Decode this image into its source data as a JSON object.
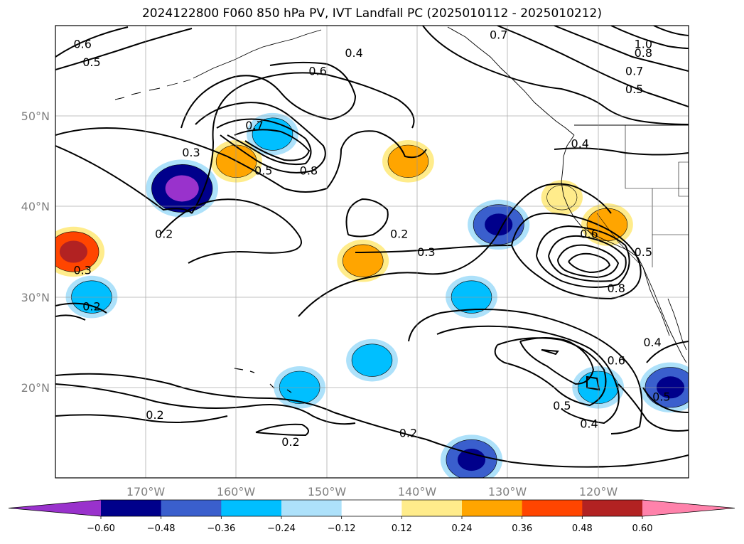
{
  "title": "2024122800 F060 850 hPa PV, IVT Landfall PC (2025010112 - 2025010212)",
  "chart_data": {
    "type": "map-contour",
    "projection": "PlateCarree",
    "lon_range": [
      -180,
      -110
    ],
    "lat_range": [
      10,
      60
    ],
    "lon_ticks": [
      {
        "value": -170,
        "label": "170°W"
      },
      {
        "value": -160,
        "label": "160°W"
      },
      {
        "value": -150,
        "label": "150°W"
      },
      {
        "value": -140,
        "label": "140°W"
      },
      {
        "value": -130,
        "label": "130°W"
      },
      {
        "value": -120,
        "label": "120°W"
      }
    ],
    "lat_ticks": [
      {
        "value": 50,
        "label": "50°N"
      },
      {
        "value": 40,
        "label": "40°N"
      },
      {
        "value": 30,
        "label": "30°N"
      },
      {
        "value": 20,
        "label": "20°N"
      }
    ],
    "grid": true,
    "colorbar": {
      "orientation": "horizontal",
      "extend": "both",
      "levels": [
        -0.6,
        -0.48,
        -0.36,
        -0.24,
        -0.12,
        0.12,
        0.24,
        0.36,
        0.48,
        0.6
      ],
      "tick_labels": [
        "−0.60",
        "−0.48",
        "−0.36",
        "−0.24",
        "−0.12",
        "0.12",
        "0.24",
        "0.36",
        "0.48",
        "0.60"
      ],
      "colors": [
        "#9932CC",
        "#00008B",
        "#3A5FCD",
        "#00BFFF",
        "#ADE1FA",
        "#FFFFFF",
        "#FFEC8B",
        "#FFA500",
        "#FF4500",
        "#B22222",
        "#FF82AB"
      ]
    },
    "shaded_regions": [
      {
        "lon": -166,
        "lat": 42,
        "level": -0.48
      },
      {
        "lon": -178,
        "lat": 35,
        "level": 0.36
      },
      {
        "lon": -160,
        "lat": 45,
        "level": 0.24
      },
      {
        "lon": -156,
        "lat": 48,
        "level": -0.24
      },
      {
        "lon": -141,
        "lat": 45,
        "level": 0.24
      },
      {
        "lon": -146,
        "lat": 34,
        "level": 0.24
      },
      {
        "lon": -131,
        "lat": 38,
        "level": -0.36
      },
      {
        "lon": -124,
        "lat": 41,
        "level": 0.12
      },
      {
        "lon": -119,
        "lat": 38,
        "level": 0.24
      },
      {
        "lon": -134,
        "lat": 30,
        "level": -0.24
      },
      {
        "lon": -145,
        "lat": 23,
        "level": -0.24
      },
      {
        "lon": -153,
        "lat": 20,
        "level": -0.24
      },
      {
        "lon": -134,
        "lat": 12,
        "level": -0.36
      },
      {
        "lon": -120,
        "lat": 20,
        "level": -0.24
      },
      {
        "lon": -112,
        "lat": 20,
        "level": -0.36
      },
      {
        "lon": -176,
        "lat": 30,
        "level": -0.24
      }
    ],
    "contour_labels": [
      {
        "text": "0.6",
        "lon": -177,
        "lat": 58
      },
      {
        "text": "0.5",
        "lon": -176,
        "lat": 56
      },
      {
        "text": "0.4",
        "lon": -147,
        "lat": 57
      },
      {
        "text": "0.6",
        "lon": -151,
        "lat": 55
      },
      {
        "text": "0.7",
        "lon": -131,
        "lat": 59
      },
      {
        "text": "1.0",
        "lon": -115,
        "lat": 58
      },
      {
        "text": "0.8",
        "lon": -115,
        "lat": 57
      },
      {
        "text": "0.7",
        "lon": -116,
        "lat": 55
      },
      {
        "text": "0.5",
        "lon": -116,
        "lat": 53
      },
      {
        "text": "0.7",
        "lon": -158,
        "lat": 49
      },
      {
        "text": "0.4",
        "lon": -122,
        "lat": 47
      },
      {
        "text": "0.3",
        "lon": -165,
        "lat": 46
      },
      {
        "text": "0.5",
        "lon": -157,
        "lat": 44
      },
      {
        "text": "0.8",
        "lon": -152,
        "lat": 44
      },
      {
        "text": "0.2",
        "lon": -168,
        "lat": 37
      },
      {
        "text": "0.2",
        "lon": -142,
        "lat": 37
      },
      {
        "text": "0.3",
        "lon": -139,
        "lat": 35
      },
      {
        "text": "0.6",
        "lon": -121,
        "lat": 37
      },
      {
        "text": "0.5",
        "lon": -115,
        "lat": 35
      },
      {
        "text": "0.3",
        "lon": -177,
        "lat": 33
      },
      {
        "text": "0.8",
        "lon": -118,
        "lat": 31
      },
      {
        "text": "0.2",
        "lon": -176,
        "lat": 29
      },
      {
        "text": "0.6",
        "lon": -118,
        "lat": 23
      },
      {
        "text": "0.4",
        "lon": -114,
        "lat": 25
      },
      {
        "text": "0.5",
        "lon": -113,
        "lat": 19
      },
      {
        "text": "0.5",
        "lon": -124,
        "lat": 18
      },
      {
        "text": "0.4",
        "lon": -121,
        "lat": 16
      },
      {
        "text": "0.2",
        "lon": -169,
        "lat": 17
      },
      {
        "text": "0.2",
        "lon": -154,
        "lat": 14
      },
      {
        "text": "0.2",
        "lon": -141,
        "lat": 15
      }
    ]
  }
}
